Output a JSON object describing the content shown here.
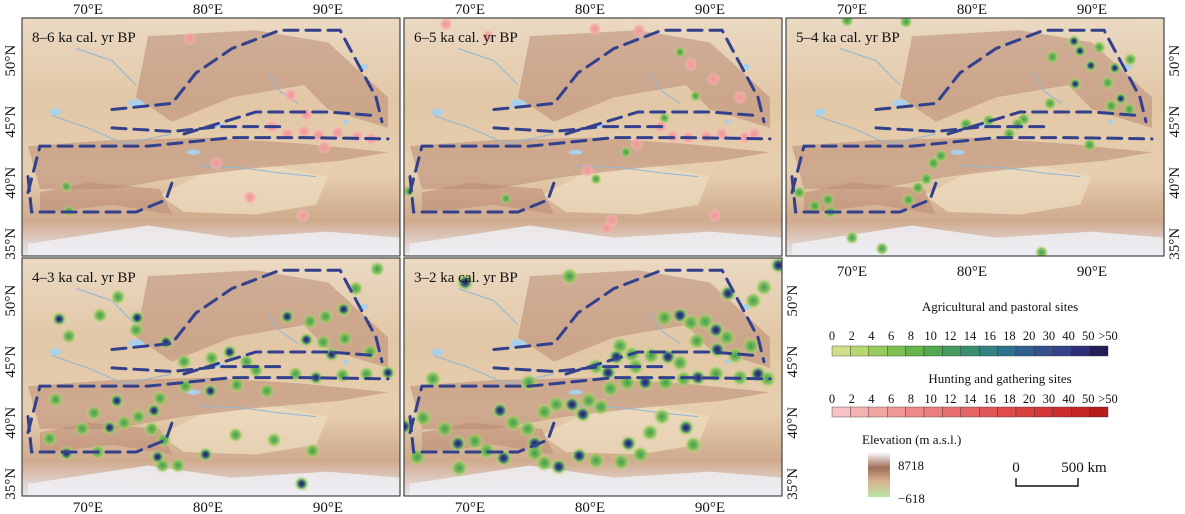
{
  "panels": [
    {
      "id": "p1",
      "title": "8–6 ka cal. yr BP"
    },
    {
      "id": "p2",
      "title": "6–5 ka cal. yr BP"
    },
    {
      "id": "p3",
      "title": "5–4 ka cal. yr BP"
    },
    {
      "id": "p4",
      "title": "4–3 ka cal. yr BP"
    },
    {
      "id": "p5",
      "title": "3–2 ka cal. yr BP"
    }
  ],
  "axes": {
    "lon_labels": [
      "70°E",
      "80°E",
      "90°E"
    ],
    "lat_labels": [
      "35°N",
      "40°N",
      "45°N",
      "50°N"
    ],
    "lon_values": [
      70,
      80,
      90
    ],
    "lat_values": [
      35,
      40,
      45,
      50
    ],
    "lon_range": [
      64.5,
      96
    ],
    "lat_range": [
      34,
      53.5
    ]
  },
  "legend": {
    "agri_title": "Agricultural and pastoral sites",
    "agri_classes": [
      "0",
      "2",
      "4",
      "6",
      "8",
      "10",
      "12",
      "14",
      "16",
      "18",
      "20",
      "30",
      "40",
      "50",
      ">50"
    ],
    "agri_colors": [
      "#cfe089",
      "#b6d86f",
      "#97cc5c",
      "#7cc052",
      "#65b44c",
      "#52a84e",
      "#449b5e",
      "#3a8e70",
      "#338180",
      "#2f718c",
      "#2f6190",
      "#33508f",
      "#35418a",
      "#2f2f78",
      "#231f55"
    ],
    "hunt_title": "Hunting and gathering sites",
    "hunt_classes": [
      "0",
      "2",
      "4",
      "6",
      "8",
      "10",
      "12",
      "14",
      "16",
      "18",
      "20",
      "30",
      "40",
      "50",
      ">50"
    ],
    "hunt_colors": [
      "#f6c2c2",
      "#f4b3b3",
      "#f2a5a5",
      "#f09797",
      "#ee8a8a",
      "#ec7d7d",
      "#ea7070",
      "#e66464",
      "#e25858",
      "#de4c4c",
      "#d94141",
      "#d33737",
      "#cc2e2e",
      "#c42626",
      "#b51c1c"
    ],
    "elev_title": "Elevation (m a.s.l.)",
    "elev_max": "8718",
    "elev_min": "−618",
    "scale_zero": "0",
    "scale_end": "500 km"
  },
  "sites": {
    "hunting": {
      "p1": [
        [
          78.5,
          51.8
        ],
        [
          86.9,
          47.2
        ],
        [
          88.2,
          45.6
        ],
        [
          85.3,
          44.6
        ],
        [
          86.6,
          44.0
        ],
        [
          88.0,
          44.2
        ],
        [
          89.2,
          43.9
        ],
        [
          90.8,
          44.1
        ],
        [
          92.4,
          43.8
        ],
        [
          93.6,
          43.6
        ],
        [
          89.7,
          42.9
        ],
        [
          80.7,
          41.6
        ],
        [
          83.5,
          38.8
        ],
        [
          87.9,
          37.3
        ]
      ],
      "p2": [
        [
          68.0,
          53.0
        ],
        [
          71.5,
          52.0
        ],
        [
          80.4,
          52.6
        ],
        [
          84.1,
          52.5
        ],
        [
          88.4,
          49.7
        ],
        [
          90.3,
          48.5
        ],
        [
          92.5,
          47.0
        ],
        [
          85.9,
          44.6
        ],
        [
          86.9,
          43.8
        ],
        [
          88.2,
          43.7
        ],
        [
          89.7,
          43.8
        ],
        [
          91.0,
          44.0
        ],
        [
          92.9,
          43.7
        ],
        [
          93.7,
          44.0
        ],
        [
          83.9,
          43.2
        ],
        [
          79.8,
          41.0
        ],
        [
          81.4,
          36.3
        ],
        [
          81.8,
          36.9
        ],
        [
          90.4,
          37.3
        ]
      ]
    },
    "agri": {
      "p1": [
        [
          68.2,
          39.7
        ],
        [
          68.4,
          37.7
        ]
      ],
      "p2": [
        [
          64.9,
          39.3
        ],
        [
          73.0,
          38.7
        ],
        [
          87.5,
          50.7
        ],
        [
          88.8,
          47.1
        ],
        [
          86.2,
          45.3
        ],
        [
          83.0,
          42.5
        ],
        [
          80.5,
          40.3
        ]
      ],
      "p3": [
        [
          69.6,
          53.3
        ],
        [
          74.5,
          53.2
        ],
        [
          88.5,
          51.6
        ],
        [
          86.7,
          50.3
        ],
        [
          89.0,
          50.8
        ],
        [
          90.6,
          51.1
        ],
        [
          91.9,
          49.4
        ],
        [
          93.2,
          50.1
        ],
        [
          89.9,
          49.6
        ],
        [
          91.3,
          48.2
        ],
        [
          88.6,
          48.1
        ],
        [
          91.6,
          46.3
        ],
        [
          92.4,
          46.9
        ],
        [
          93.1,
          46.0
        ],
        [
          86.5,
          46.5
        ],
        [
          84.3,
          45.2
        ],
        [
          81.4,
          45.1
        ],
        [
          79.5,
          44.8
        ],
        [
          83.1,
          44.0
        ],
        [
          83.8,
          44.8
        ],
        [
          89.8,
          43.1
        ],
        [
          77.4,
          42.2
        ],
        [
          76.8,
          41.6
        ],
        [
          76.2,
          40.3
        ],
        [
          75.5,
          39.6
        ],
        [
          74.7,
          38.6
        ],
        [
          65.6,
          39.2
        ],
        [
          66.9,
          38.1
        ],
        [
          68.0,
          38.6
        ],
        [
          68.2,
          37.6
        ],
        [
          70.0,
          35.5
        ],
        [
          72.5,
          34.6
        ],
        [
          85.8,
          34.3
        ]
      ],
      "p4": [
        [
          67.6,
          48.5
        ],
        [
          71.0,
          48.8
        ],
        [
          72.5,
          50.3
        ],
        [
          74.1,
          48.6
        ],
        [
          74.0,
          47.6
        ],
        [
          68.4,
          47.1
        ],
        [
          76.5,
          46.6
        ],
        [
          78.0,
          45.0
        ],
        [
          80.3,
          45.3
        ],
        [
          81.8,
          45.8
        ],
        [
          83.2,
          45.0
        ],
        [
          84.0,
          44.3
        ],
        [
          86.6,
          48.7
        ],
        [
          88.5,
          48.3
        ],
        [
          89.8,
          48.7
        ],
        [
          91.3,
          49.3
        ],
        [
          92.3,
          51.0
        ],
        [
          94.1,
          52.6
        ],
        [
          88.2,
          46.8
        ],
        [
          89.6,
          46.6
        ],
        [
          91.4,
          46.9
        ],
        [
          90.3,
          45.6
        ],
        [
          93.5,
          45.8
        ],
        [
          87.3,
          44.0
        ],
        [
          89.0,
          43.7
        ],
        [
          91.2,
          43.9
        ],
        [
          93.2,
          44.0
        ],
        [
          95.0,
          44.1
        ],
        [
          82.4,
          43.1
        ],
        [
          84.9,
          42.6
        ],
        [
          80.2,
          42.6
        ],
        [
          78.1,
          43.0
        ],
        [
          76.0,
          42.0
        ],
        [
          75.5,
          41.0
        ],
        [
          74.2,
          40.5
        ],
        [
          73.0,
          40.0
        ],
        [
          71.8,
          39.6
        ],
        [
          70.5,
          40.8
        ],
        [
          69.5,
          39.5
        ],
        [
          72.4,
          41.8
        ],
        [
          75.3,
          39.5
        ],
        [
          76.3,
          38.6
        ],
        [
          75.8,
          37.2
        ],
        [
          76.2,
          36.5
        ],
        [
          77.5,
          36.5
        ],
        [
          79.8,
          37.4
        ],
        [
          82.3,
          39.0
        ],
        [
          85.5,
          38.6
        ],
        [
          87.8,
          35.0
        ],
        [
          88.7,
          37.7
        ],
        [
          66.8,
          38.7
        ],
        [
          68.2,
          37.5
        ],
        [
          70.8,
          37.6
        ],
        [
          67.3,
          41.9
        ]
      ],
      "p5": [
        [
          64.5,
          39.7
        ],
        [
          66.1,
          40.4
        ],
        [
          67.9,
          39.5
        ],
        [
          69.0,
          38.3
        ],
        [
          70.4,
          38.5
        ],
        [
          71.4,
          37.7
        ],
        [
          72.8,
          37.1
        ],
        [
          69.1,
          36.3
        ],
        [
          65.6,
          37.2
        ],
        [
          72.5,
          41.0
        ],
        [
          73.6,
          40.0
        ],
        [
          74.8,
          39.5
        ],
        [
          75.4,
          38.3
        ],
        [
          75.4,
          37.5
        ],
        [
          76.2,
          36.7
        ],
        [
          77.4,
          36.4
        ],
        [
          76.2,
          40.9
        ],
        [
          77.2,
          41.5
        ],
        [
          78.5,
          41.5
        ],
        [
          79.9,
          41.8
        ],
        [
          80.9,
          41.3
        ],
        [
          79.4,
          40.7
        ],
        [
          81.7,
          42.8
        ],
        [
          83.1,
          43.3
        ],
        [
          84.6,
          43.3
        ],
        [
          86.3,
          43.3
        ],
        [
          87.8,
          43.6
        ],
        [
          89.0,
          43.7
        ],
        [
          90.5,
          44.0
        ],
        [
          92.5,
          43.7
        ],
        [
          94.0,
          44.0
        ],
        [
          94.8,
          43.6
        ],
        [
          80.5,
          44.6
        ],
        [
          82.2,
          45.4
        ],
        [
          83.5,
          45.6
        ],
        [
          85.1,
          45.5
        ],
        [
          86.5,
          45.4
        ],
        [
          87.5,
          44.9
        ],
        [
          82.5,
          46.3
        ],
        [
          81.5,
          44.1
        ],
        [
          83.8,
          44.6
        ],
        [
          86.2,
          48.6
        ],
        [
          87.5,
          48.8
        ],
        [
          88.4,
          48.2
        ],
        [
          89.6,
          48.3
        ],
        [
          90.5,
          47.6
        ],
        [
          91.4,
          47.0
        ],
        [
          88.9,
          46.7
        ],
        [
          90.6,
          46.0
        ],
        [
          92.1,
          45.5
        ],
        [
          93.4,
          46.3
        ],
        [
          91.5,
          50.6
        ],
        [
          93.6,
          50.0
        ],
        [
          94.5,
          51.1
        ],
        [
          95.7,
          52.9
        ],
        [
          86.0,
          40.5
        ],
        [
          85.0,
          39.2
        ],
        [
          83.2,
          38.3
        ],
        [
          84.2,
          37.4
        ],
        [
          80.5,
          36.9
        ],
        [
          79.1,
          37.3
        ],
        [
          82.6,
          36.8
        ],
        [
          88.6,
          38.2
        ],
        [
          88.0,
          39.6
        ],
        [
          66.9,
          43.6
        ],
        [
          74.9,
          43.3
        ],
        [
          69.6,
          51.5
        ],
        [
          78.3,
          52.0
        ]
      ]
    }
  }
}
